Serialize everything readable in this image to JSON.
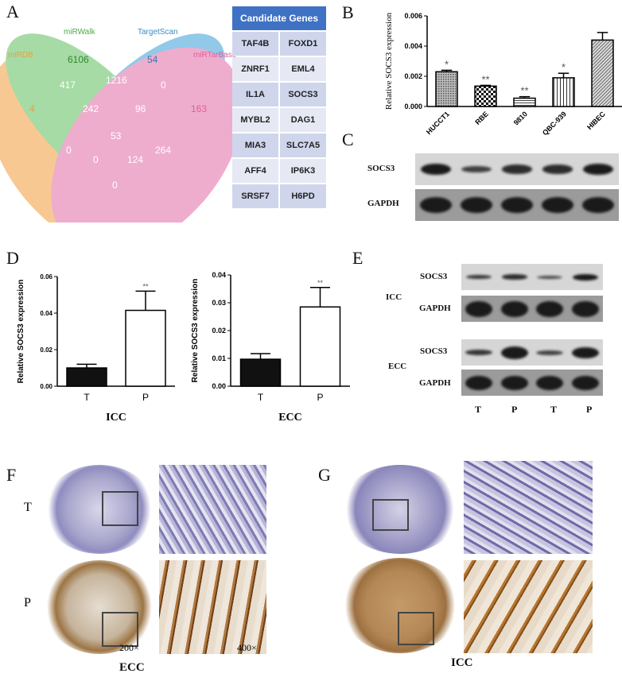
{
  "panels": {
    "A": "A",
    "B": "B",
    "C": "C",
    "D": "D",
    "E": "E",
    "F": "F",
    "G": "G"
  },
  "venn": {
    "sets": [
      {
        "name": "miRDB",
        "color": "#f5a54a"
      },
      {
        "name": "miRWalk",
        "color": "#6cc46a"
      },
      {
        "name": "TargetScan",
        "color": "#4aa6dc"
      },
      {
        "name": "miRTarBase",
        "color": "#e678ad"
      }
    ],
    "counts": {
      "miRDB_only": "4",
      "miRWalk_only": "6106",
      "TargetScan_only": "54",
      "miRTarBase_only": "163",
      "miRDB_miRWalk": "417",
      "miRWalk_TargetScan": "1216",
      "TargetScan_miRTarBase": "0",
      "miRDB_miRWalk_TargetScan": "242",
      "miRWalk_TargetScan_miRTarBase": "96",
      "all": "53",
      "miRDB_TargetScan": "0",
      "miRWalk_miRTarBase": "264",
      "miRDB_TargetScan_miRTarBase": "0",
      "miRDB_miRWalk_miRTarBase": "124",
      "miRDB_miRTarBase": "0"
    }
  },
  "table": {
    "header": "Candidate Genes",
    "rows": [
      [
        "TAF4B",
        "FOXD1"
      ],
      [
        "ZNRF1",
        "EML4"
      ],
      [
        "IL1A",
        "SOCS3"
      ],
      [
        "MYBL2",
        "DAG1"
      ],
      [
        "MIA3",
        "SLC7A5"
      ],
      [
        "AFF4",
        "IP6K3"
      ],
      [
        "SRSF7",
        "H6PD"
      ]
    ]
  },
  "chart_data": [
    {
      "type": "bar",
      "panel": "B",
      "categories": [
        "HUCCT1",
        "RBE",
        "9810",
        "QBC-939",
        "HIBEC"
      ],
      "values": [
        0.0023,
        0.00135,
        0.00055,
        0.0019,
        0.0044
      ],
      "errors": [
        0.0001,
        5e-05,
        0.0001,
        0.0003,
        0.0005
      ],
      "significance": [
        "*",
        "**",
        "**",
        "*",
        ""
      ],
      "ylabel": "Relative SOCS3 expression",
      "ylim": [
        0,
        0.006
      ],
      "yticks": [
        "0.000",
        "0.002",
        "0.004",
        "0.006"
      ]
    },
    {
      "type": "bar",
      "panel": "D",
      "categories": [
        "T",
        "P"
      ],
      "values": [
        0.01,
        0.0415
      ],
      "errors": [
        0.002,
        0.0105
      ],
      "significance": [
        "",
        "**"
      ],
      "ylabel": "Relative SOCS3 expression",
      "xlabel": "ICC",
      "ylim": [
        0,
        0.06
      ],
      "yticks": [
        "0.00",
        "0.02",
        "0.04",
        "0.06"
      ]
    },
    {
      "type": "bar",
      "panel": "D",
      "categories": [
        "T",
        "P"
      ],
      "values": [
        0.0097,
        0.0285
      ],
      "errors": [
        0.002,
        0.007
      ],
      "significance": [
        "",
        "**"
      ],
      "ylabel": "Relative SOCS3 expression",
      "xlabel": "ECC",
      "ylim": [
        0,
        0.04
      ],
      "yticks": [
        "0.00",
        "0.01",
        "0.02",
        "0.03",
        "0.04"
      ]
    }
  ],
  "blots": {
    "socs3": "SOCS3",
    "gapdh": "GAPDH",
    "icc": "ICC",
    "ecc": "ECC",
    "lanes": [
      "T",
      "P",
      "T",
      "P"
    ]
  },
  "ihc": {
    "rows": [
      "T",
      "P"
    ],
    "mag_low": "200×",
    "mag_high": "400×",
    "F_label": "ECC",
    "G_label": "ICC"
  }
}
